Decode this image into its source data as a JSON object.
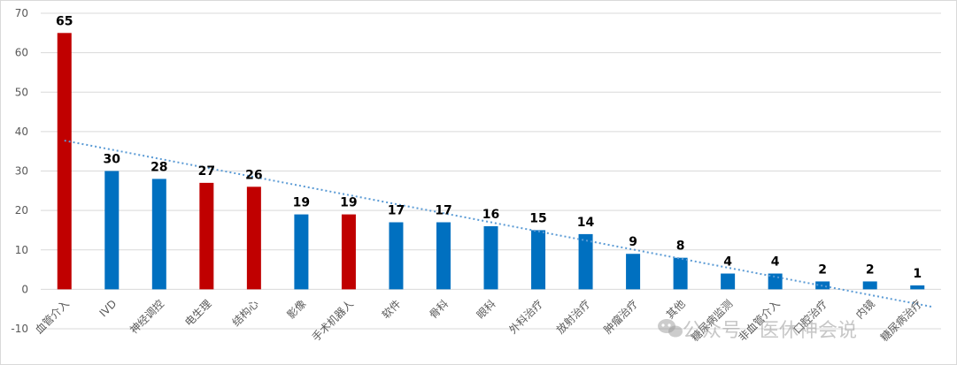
{
  "chart_data": {
    "type": "bar",
    "categories": [
      "血管介入",
      "IVD",
      "神经调控",
      "电生理",
      "结构心",
      "影像",
      "手术机器人",
      "软件",
      "骨科",
      "眼科",
      "外科治疗",
      "放射治疗",
      "肿瘤治疗",
      "其他",
      "糖尿病监测",
      "非血管介入",
      "口腔治疗",
      "内镜",
      "糖尿病治疗"
    ],
    "values": [
      65,
      30,
      28,
      27,
      26,
      19,
      19,
      17,
      17,
      16,
      15,
      14,
      9,
      8,
      4,
      4,
      2,
      2,
      1
    ],
    "highlighted": [
      true,
      false,
      false,
      true,
      true,
      false,
      true,
      false,
      false,
      false,
      false,
      false,
      false,
      false,
      false,
      false,
      false,
      false,
      false
    ],
    "ylim": [
      -10,
      70
    ],
    "yticks": [
      -10,
      0,
      10,
      20,
      30,
      40,
      50,
      60,
      70
    ],
    "ytick_labels": [
      "-10",
      "0",
      "10",
      "20",
      "30",
      "40",
      "50",
      "60",
      "70"
    ],
    "grid": true,
    "trendline": {
      "type": "linear",
      "style": "dotted",
      "color": "#5b9bd5"
    },
    "title": "",
    "xlabel": "",
    "ylabel": "",
    "colors": {
      "highlight": "#c00000",
      "default": "#0070c0"
    }
  },
  "watermark": {
    "text": "公众号 · 医休神会说",
    "icon": "wechat-icon"
  }
}
